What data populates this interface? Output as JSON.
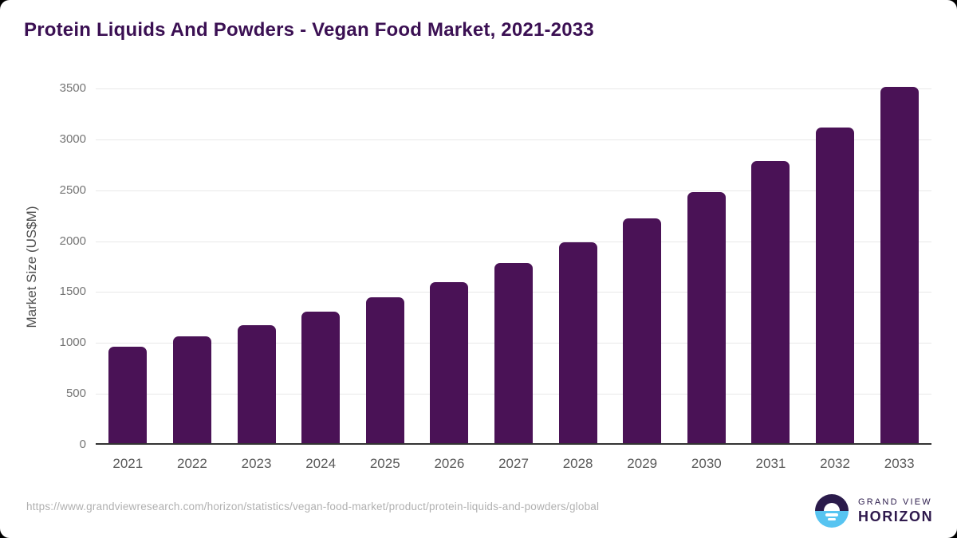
{
  "title": "Protein Liquids And Powders - Vegan Food Market, 2021-2033",
  "chart_data": {
    "type": "bar",
    "title": "Protein Liquids And Powders - Vegan Food Market, 2021-2033",
    "categories": [
      "2021",
      "2022",
      "2023",
      "2024",
      "2025",
      "2026",
      "2027",
      "2028",
      "2029",
      "2030",
      "2031",
      "2032",
      "2033"
    ],
    "values": [
      950,
      1050,
      1160,
      1290,
      1430,
      1580,
      1770,
      1970,
      2210,
      2470,
      2770,
      3100,
      3500
    ],
    "xlabel": "",
    "ylabel": "Market Size (US$M)",
    "ylim": [
      0,
      3500
    ],
    "yticks": [
      0,
      500,
      1000,
      1500,
      2000,
      2500,
      3000,
      3500
    ],
    "grid": "horizontal",
    "legend": "none",
    "bar_color": "#4A1256"
  },
  "footer": {
    "source_url": "https://www.grandviewresearch.com/horizon/statistics/vegan-food-market/product/protein-liquids-and-powders/global",
    "brand_line1": "GRAND VIEW",
    "brand_line2": "HORIZON"
  },
  "colors": {
    "title": "#3B1053",
    "bar": "#4A1256",
    "gridline": "#e8e8e8",
    "axis_line": "#333333",
    "tick_label": "#757575",
    "logo_navy": "#2B1B4B",
    "logo_blue": "#57C4F1",
    "background": "#ffffff"
  }
}
